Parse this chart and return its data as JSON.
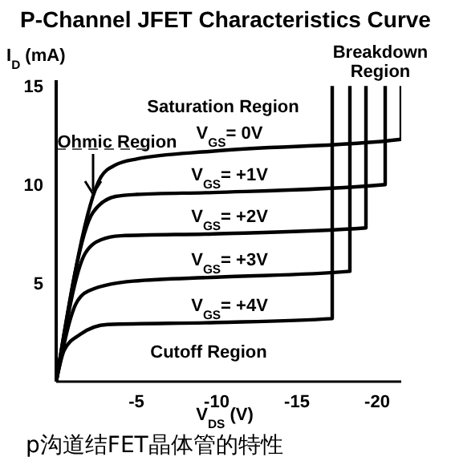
{
  "chart_data": {
    "type": "line",
    "title": "P-Channel JFET Characteristics Curve",
    "xlabel": "V$_{DS}$ (V)",
    "ylabel": "I$_{D}$ (mA)",
    "xlim": [
      0,
      -21.5
    ],
    "ylim": [
      0,
      15.3
    ],
    "xticks": [
      -5,
      -10,
      -15,
      -20
    ],
    "yticks": [
      5,
      10,
      15
    ],
    "marker": "none",
    "line_style": "solid",
    "series": [
      {
        "name": "V$_{GS}$= 0V",
        "color": "#000000",
        "x": [
          0,
          -2.8,
          -3.7,
          -5,
          -9.8,
          -21.5,
          -21.5
        ],
        "values": [
          0,
          10.4,
          11,
          11.3,
          11.7,
          12.3,
          15
        ]
      },
      {
        "name": "V$_{GS}$= +1V",
        "color": "#000000",
        "x": [
          0,
          -2.3,
          -3.7,
          -5,
          -9.8,
          -20.5,
          -20.5
        ],
        "values": [
          0,
          8.6,
          9.4,
          9.5,
          9.6,
          10,
          15
        ]
      },
      {
        "name": "V$_{GS}$= +2V",
        "color": "#000000",
        "x": [
          0,
          -1.8,
          -2.8,
          -4,
          -9.8,
          -19.3,
          -19.3
        ],
        "values": [
          0,
          6.5,
          7.2,
          7.4,
          7.5,
          7.8,
          15
        ]
      },
      {
        "name": "V$_{GS}$= +3V",
        "color": "#000000",
        "x": [
          0,
          -1.2,
          -2,
          -4.8,
          -10,
          -18.3,
          -18.3
        ],
        "values": [
          0,
          3.9,
          4.6,
          5.1,
          5.3,
          5.6,
          15
        ]
      },
      {
        "name": "V$_{GS}$= +4V",
        "color": "#000000",
        "x": [
          0,
          -0.5,
          -1.5,
          -3.2,
          -10,
          -17.2,
          -17.2
        ],
        "values": [
          0,
          1.6,
          2.4,
          2.9,
          3.0,
          3.2,
          15
        ]
      }
    ],
    "ref_lines": [
      {
        "axis": "y",
        "value": 11.8,
        "color": "#555555",
        "line_style": "dashed"
      }
    ],
    "annotations": [
      "Ohmic Region",
      "Saturation Region",
      "Breakdown Region",
      "Cutoff Region",
      "p沟道结FET晶体管的特性"
    ]
  }
}
